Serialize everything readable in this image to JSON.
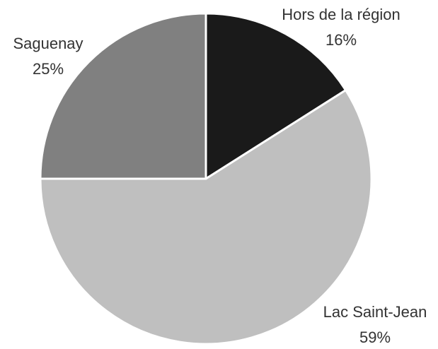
{
  "chart_data": {
    "type": "pie",
    "categories": [
      "Hors de la région",
      "Lac Saint-Jean",
      "Saguenay"
    ],
    "values": [
      16,
      59,
      25
    ],
    "value_labels": [
      "16%",
      "59%",
      "25%"
    ],
    "colors": [
      "#1a1a1a",
      "#bfbfbf",
      "#808080"
    ]
  }
}
